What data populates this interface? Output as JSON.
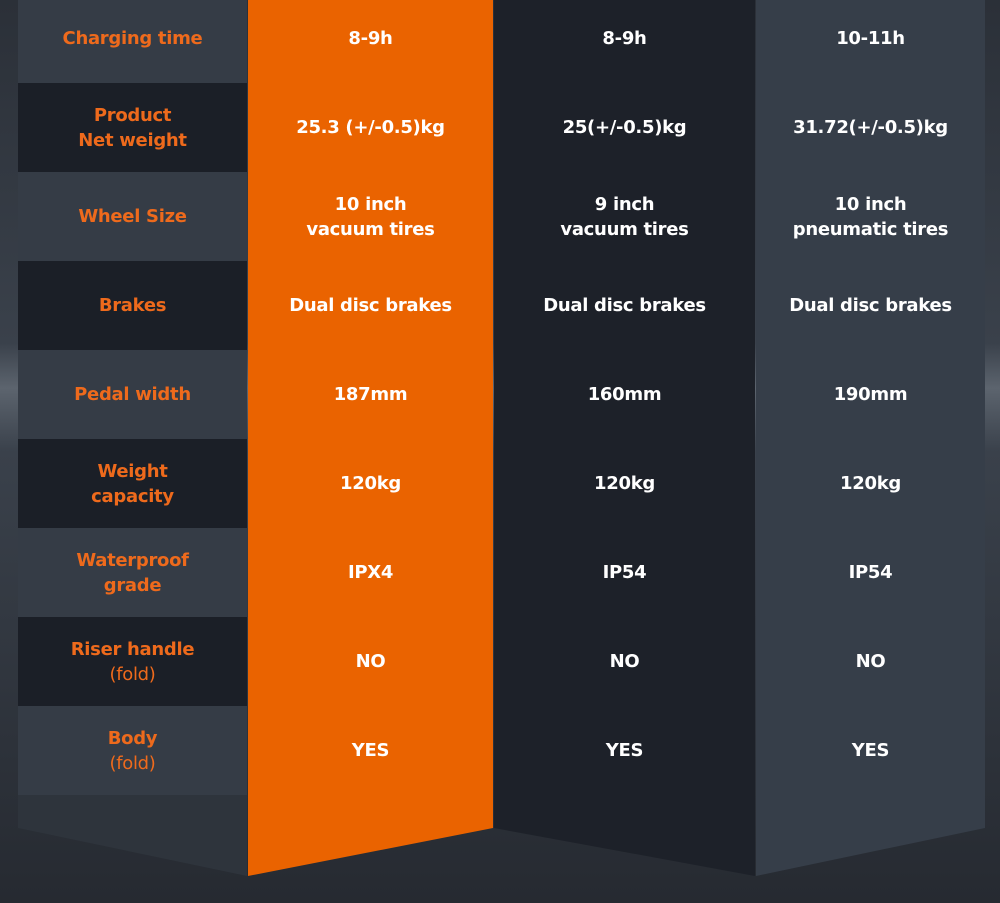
{
  "table": {
    "rows": [
      {
        "label": [
          "Charging time"
        ],
        "values": [
          [
            "8-9h"
          ],
          [
            "8-9h"
          ],
          [
            "10-11h"
          ]
        ]
      },
      {
        "label": [
          "Product",
          "Net weight"
        ],
        "values": [
          [
            "25.3 (+/-0.5)kg"
          ],
          [
            "25(+/-0.5)kg"
          ],
          [
            "31.72(+/-0.5)kg"
          ]
        ]
      },
      {
        "label": [
          "Wheel Size"
        ],
        "values": [
          [
            "10 inch",
            "vacuum tires"
          ],
          [
            "9 inch",
            "vacuum tires"
          ],
          [
            "10 inch",
            "pneumatic tires"
          ]
        ]
      },
      {
        "label": [
          "Brakes"
        ],
        "values": [
          [
            "Dual disc brakes"
          ],
          [
            "Dual disc brakes"
          ],
          [
            "Dual disc brakes"
          ]
        ]
      },
      {
        "label": [
          "Pedal width"
        ],
        "values": [
          [
            "187mm"
          ],
          [
            "160mm"
          ],
          [
            "190mm"
          ]
        ]
      },
      {
        "label": [
          "Weight",
          "capacity"
        ],
        "values": [
          [
            "120kg"
          ],
          [
            "120kg"
          ],
          [
            "120kg"
          ]
        ]
      },
      {
        "label": [
          "Waterproof",
          "grade"
        ],
        "values": [
          [
            "IPX4"
          ],
          [
            "IP54"
          ],
          [
            "IP54"
          ]
        ]
      },
      {
        "label": [
          "Riser handle",
          "(fold)"
        ],
        "values": [
          [
            "NO"
          ],
          [
            "NO"
          ],
          [
            "NO"
          ]
        ]
      },
      {
        "label": [
          "Body",
          "(fold)"
        ],
        "values": [
          [
            "YES"
          ],
          [
            "YES"
          ],
          [
            "YES"
          ]
        ]
      }
    ]
  }
}
